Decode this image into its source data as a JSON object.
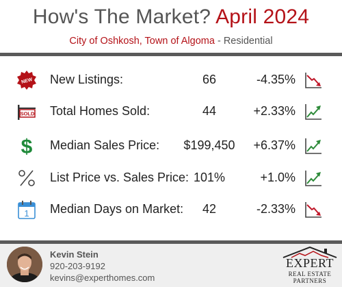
{
  "header": {
    "title_main": "How's The Market?",
    "title_month": "April 2024",
    "location": "City of Oshkosh, Town of Algoma",
    "separator": " - ",
    "category": "Residential"
  },
  "metrics": [
    {
      "label": "New Listings:",
      "value": "66",
      "change": "-4.35%",
      "icon": "new-badge-icon",
      "trend": "down"
    },
    {
      "label": "Total Homes Sold:",
      "value": "44",
      "change": "+2.33%",
      "icon": "sold-sign-icon",
      "trend": "up"
    },
    {
      "label": "Median Sales Price:",
      "value": "$199,450",
      "change": "+6.37%",
      "icon": "dollar-icon",
      "trend": "up"
    },
    {
      "label": "List Price vs. Sales Price:",
      "value": "101%",
      "change": "+1.0%",
      "icon": "percent-icon",
      "trend": "up"
    },
    {
      "label": "Median Days on Market:",
      "value": "42",
      "change": "-2.33%",
      "icon": "calendar-icon",
      "trend": "down"
    }
  ],
  "icon_text": {
    "new_badge": "NEW",
    "sold_sign": "SOLD",
    "calendar_day": "1"
  },
  "agent": {
    "name": "Kevin Stein",
    "phone": "920-203-9192",
    "email": "kevins@experthomes.com"
  },
  "brand": {
    "name": "EXPERT",
    "tagline_1": "REAL ESTATE",
    "tagline_2": "PARTNERS"
  },
  "colors": {
    "accent_red": "#b41218",
    "trend_up": "#2e8b3a",
    "trend_down": "#c0182a",
    "dollar_green": "#1f8a3a",
    "rule_gray": "#5a5a5a"
  }
}
